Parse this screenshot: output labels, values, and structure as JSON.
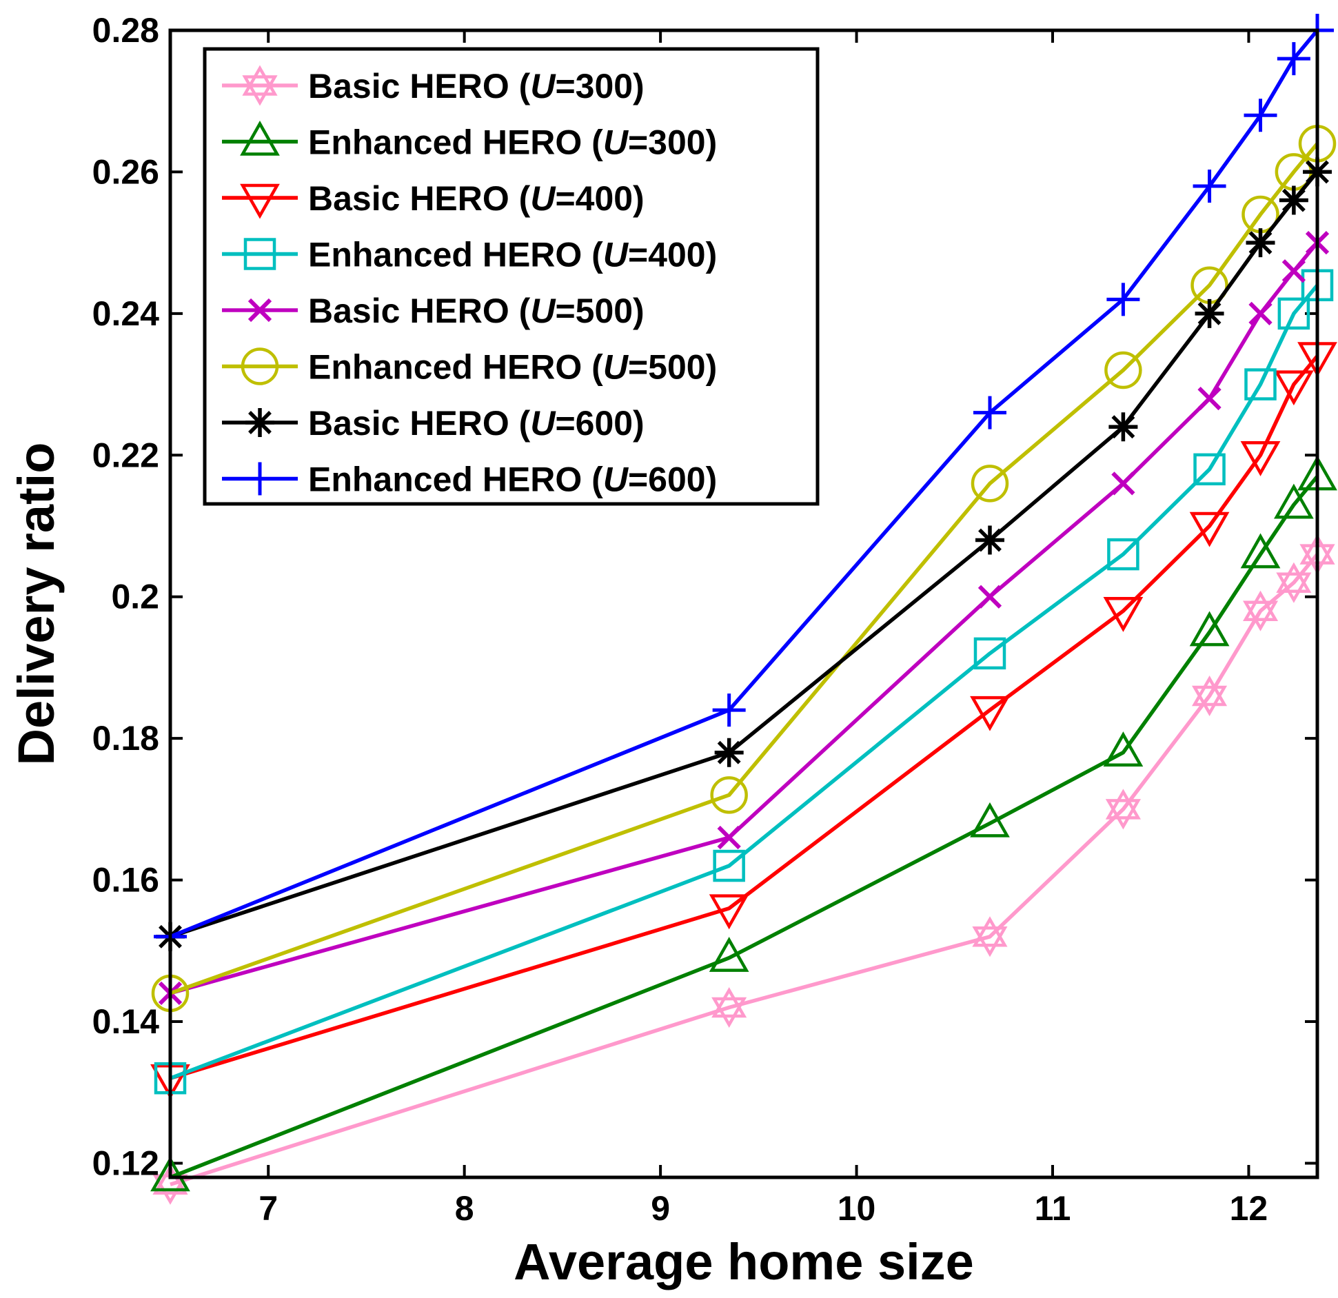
{
  "chart_data": {
    "type": "line",
    "xlabel": "Average home size",
    "ylabel": "Delivery ratio",
    "xlim": [
      6.5,
      12.35
    ],
    "ylim": [
      0.118,
      0.28
    ],
    "xticks": [
      7,
      8,
      9,
      10,
      11,
      12
    ],
    "xtick_labels": [
      "7",
      "8",
      "9",
      "10",
      "11",
      "12"
    ],
    "yticks": [
      0.12,
      0.14,
      0.16,
      0.18,
      0.2,
      0.22,
      0.24,
      0.26,
      0.28
    ],
    "ytick_labels": [
      "0.12",
      "0.14",
      "0.16",
      "0.18",
      "0.2",
      "0.22",
      "0.24",
      "0.26",
      "0.28"
    ],
    "legend_position": "top-left",
    "x": [
      6.5,
      9.35,
      10.68,
      11.36,
      11.8,
      12.06,
      12.23,
      12.35
    ],
    "series": [
      {
        "name_prefix": "Basic HERO (",
        "name_var": "U",
        "name_suffix": "=300)",
        "color": "#ff99cc",
        "marker": "hexagram",
        "values": [
          0.117,
          0.142,
          0.152,
          0.17,
          0.186,
          0.198,
          0.202,
          0.206
        ]
      },
      {
        "name_prefix": "Enhanced HERO (",
        "name_var": "U",
        "name_suffix": "=300)",
        "color": "#008000",
        "marker": "triangle-up",
        "values": [
          0.118,
          0.149,
          0.168,
          0.178,
          0.195,
          0.206,
          0.213,
          0.217
        ]
      },
      {
        "name_prefix": "Basic HERO (",
        "name_var": "U",
        "name_suffix": "=400)",
        "color": "#ff0000",
        "marker": "triangle-down",
        "values": [
          0.132,
          0.156,
          0.184,
          0.198,
          0.21,
          0.22,
          0.23,
          0.234
        ]
      },
      {
        "name_prefix": "Enhanced HERO (",
        "name_var": "U",
        "name_suffix": "=400)",
        "color": "#00bfbf",
        "marker": "square",
        "values": [
          0.132,
          0.162,
          0.192,
          0.206,
          0.218,
          0.23,
          0.24,
          0.244
        ]
      },
      {
        "name_prefix": "Basic HERO (",
        "name_var": "U",
        "name_suffix": "=500)",
        "color": "#bf00bf",
        "marker": "x",
        "values": [
          0.144,
          0.166,
          0.2,
          0.216,
          0.228,
          0.24,
          0.246,
          0.25
        ]
      },
      {
        "name_prefix": "Enhanced HERO (",
        "name_var": "U",
        "name_suffix": "=500)",
        "color": "#bfbf00",
        "marker": "circle",
        "values": [
          0.144,
          0.172,
          0.216,
          0.232,
          0.244,
          0.254,
          0.26,
          0.264
        ]
      },
      {
        "name_prefix": "Basic HERO (",
        "name_var": "U",
        "name_suffix": "=600)",
        "color": "#000000",
        "marker": "asterisk",
        "values": [
          0.152,
          0.178,
          0.208,
          0.224,
          0.24,
          0.25,
          0.256,
          0.26
        ]
      },
      {
        "name_prefix": "Enhanced HERO (",
        "name_var": "U",
        "name_suffix": "=600)",
        "color": "#0000ff",
        "marker": "plus",
        "values": [
          0.152,
          0.184,
          0.226,
          0.242,
          0.258,
          0.268,
          0.276,
          0.28
        ]
      }
    ]
  }
}
